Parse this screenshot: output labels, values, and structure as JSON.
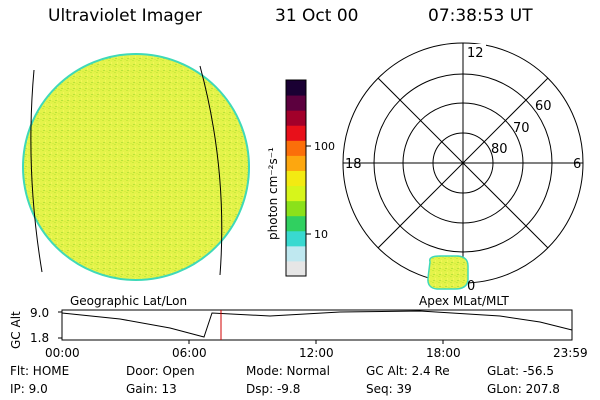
{
  "header": {
    "title": "Ultraviolet Imager",
    "date": "31 Oct 00",
    "time": "07:38:53 UT"
  },
  "colorbar": {
    "label": "photon cm⁻²s⁻¹",
    "ticks": [
      "100",
      "10"
    ],
    "colors": [
      "#e6e6e6",
      "#bfe8f0",
      "#39d9d0",
      "#30d060",
      "#8be11a",
      "#d7f51b",
      "#f3ea12",
      "#fda70f",
      "#fb6f0a",
      "#e8101a",
      "#a2002a",
      "#5c003e",
      "#1a0033"
    ]
  },
  "polar": {
    "mlt_labels": {
      "top": "12",
      "left": "18",
      "right": "6",
      "bottom": "0"
    },
    "lat_labels": [
      "60",
      "70",
      "80"
    ]
  },
  "timeline": {
    "left_label": "Geographic Lat/Lon",
    "right_label": "Apex MLat/MLT",
    "y_axis_label": "GC Alt",
    "y_ticks": [
      "9.0",
      "1.8"
    ],
    "x_ticks": [
      "00:00",
      "06:00",
      "12:00",
      "18:00",
      "23:59"
    ],
    "marker_color": "#d00000"
  },
  "status": {
    "flt": "Flt: HOME",
    "ip": "IP:  9.0",
    "door": "Door: Open",
    "gain": "Gain: 13",
    "mode": "Mode: Normal",
    "dsp": "Dsp:  -9.8",
    "gcalt": "GC Alt: 2.4 Re",
    "seq": "Seq: 39",
    "glat": "GLat: -56.5",
    "glon": "GLon: 207.8"
  },
  "colors": {
    "disk_fill": "#e4f34a",
    "disk_edge": "#3fd9b8"
  }
}
